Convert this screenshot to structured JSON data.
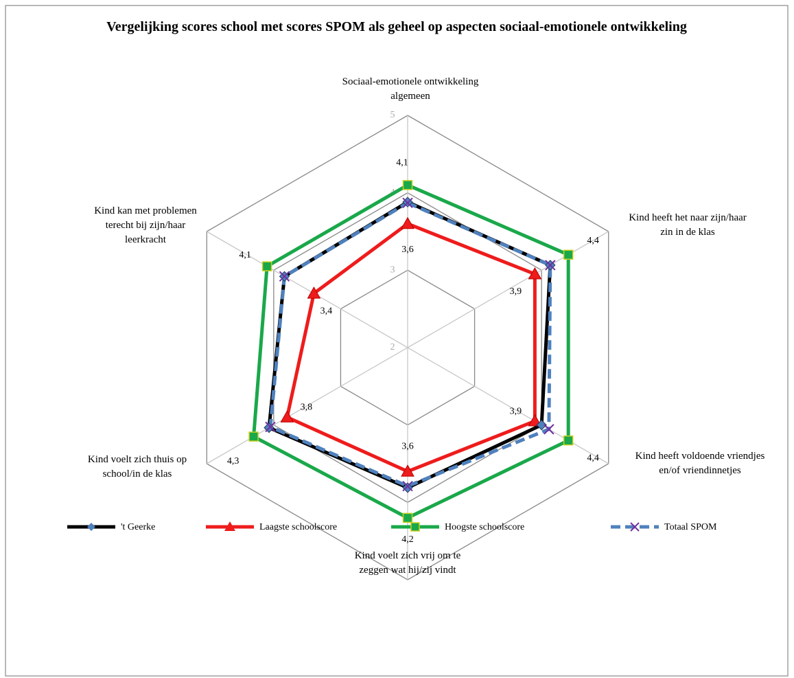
{
  "chart_data": {
    "type": "radar",
    "title": "Vergelijking scores school met scores SPOM als geheel op aspecten sociaal-emotionele ontwikkeling",
    "categories": [
      "Sociaal-emotionele ontwikkeling algemeen",
      "Kind heeft het naar zijn/haar zin in de klas",
      "Kind heeft voldoende vriendjes en/of vriendinnetjes",
      "Kind voelt zich vrij om te zeggen wat hij/zij vindt",
      "Kind voelt zich thuis op school/in de klas",
      "Kind kan met problemen terecht bij zijn/haar leerkracht"
    ],
    "rlim": [
      2,
      5
    ],
    "rticks": [
      2,
      3,
      4,
      5
    ],
    "grid": true,
    "legend": "bottom",
    "series": [
      {
        "name": "'t Geerke",
        "color": "#000000",
        "marker": "diamond",
        "marker_color": "#4f81bd",
        "values": [
          3.88,
          4.13,
          4.0,
          3.81,
          4.07,
          3.84
        ]
      },
      {
        "name": "Laagste schoolscore",
        "color": "#ee1c1c",
        "marker": "triangle",
        "marker_color": "#ee1c1c",
        "values": [
          3.6,
          3.9,
          3.9,
          3.6,
          3.8,
          3.4
        ],
        "value_labels": [
          "3,6",
          "3,9",
          "3,9",
          "3,6",
          "3,8",
          "3,4"
        ]
      },
      {
        "name": "Hoogste schoolscore",
        "color": "#1aa84a",
        "marker": "square",
        "marker_color": "#1aa84a",
        "values": [
          4.1,
          4.4,
          4.4,
          4.2,
          4.3,
          4.1
        ],
        "value_labels": [
          "4,1",
          "4,4",
          "4,4",
          "4,2",
          "4,3",
          "4,1"
        ]
      },
      {
        "name": "Totaal SPOM",
        "color": "#4f81bd",
        "dashed": true,
        "marker": "x",
        "marker_color": "#7030a0",
        "values": [
          3.87,
          4.13,
          4.11,
          3.79,
          4.05,
          3.84
        ]
      }
    ]
  }
}
